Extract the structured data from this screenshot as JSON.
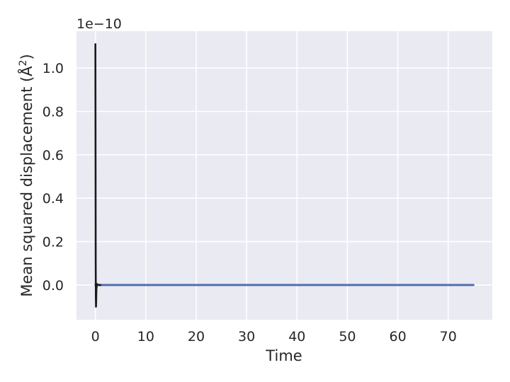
{
  "chart_data": {
    "type": "line",
    "title": "",
    "xlabel": "Time",
    "ylabel_main": "Mean squared displacement (Å",
    "ylabel_sup": "2",
    "ylabel_close": ")",
    "y_offset_label": "1e−10",
    "xlim": [
      -3.75,
      78.75
    ],
    "ylim": [
      -0.16,
      1.17
    ],
    "y_scale_note": "y values shown in units of 1e-10",
    "grid": true,
    "background": "#EAEAF2",
    "x_ticks": [
      0,
      10,
      20,
      30,
      40,
      50,
      60,
      70
    ],
    "x_tick_labels": [
      "0",
      "10",
      "20",
      "30",
      "40",
      "50",
      "60",
      "70"
    ],
    "y_ticks": [
      0.0,
      0.2,
      0.4,
      0.6,
      0.8,
      1.0
    ],
    "y_tick_labels": [
      "0.0",
      "0.2",
      "0.4",
      "0.6",
      "0.8",
      "1.0"
    ],
    "series": [
      {
        "color": "#4C72B0",
        "x": [
          0,
          0.5,
          1,
          2,
          5,
          10,
          20,
          30,
          40,
          50,
          60,
          70,
          75
        ],
        "y": [
          0,
          0,
          0,
          0,
          0,
          0,
          0,
          0,
          0,
          0,
          0,
          0,
          0
        ]
      },
      {
        "color": "#1a1a1a",
        "x": [
          0.0,
          0.03,
          0.06,
          0.09,
          0.12,
          0.15,
          0.2,
          0.3,
          0.4,
          0.6,
          0.8,
          1.0
        ],
        "y": [
          1.11,
          0.6,
          0.1,
          -0.06,
          -0.1,
          -0.08,
          -0.02,
          0.005,
          0.002,
          0.001,
          0.0,
          0.0
        ]
      }
    ]
  }
}
